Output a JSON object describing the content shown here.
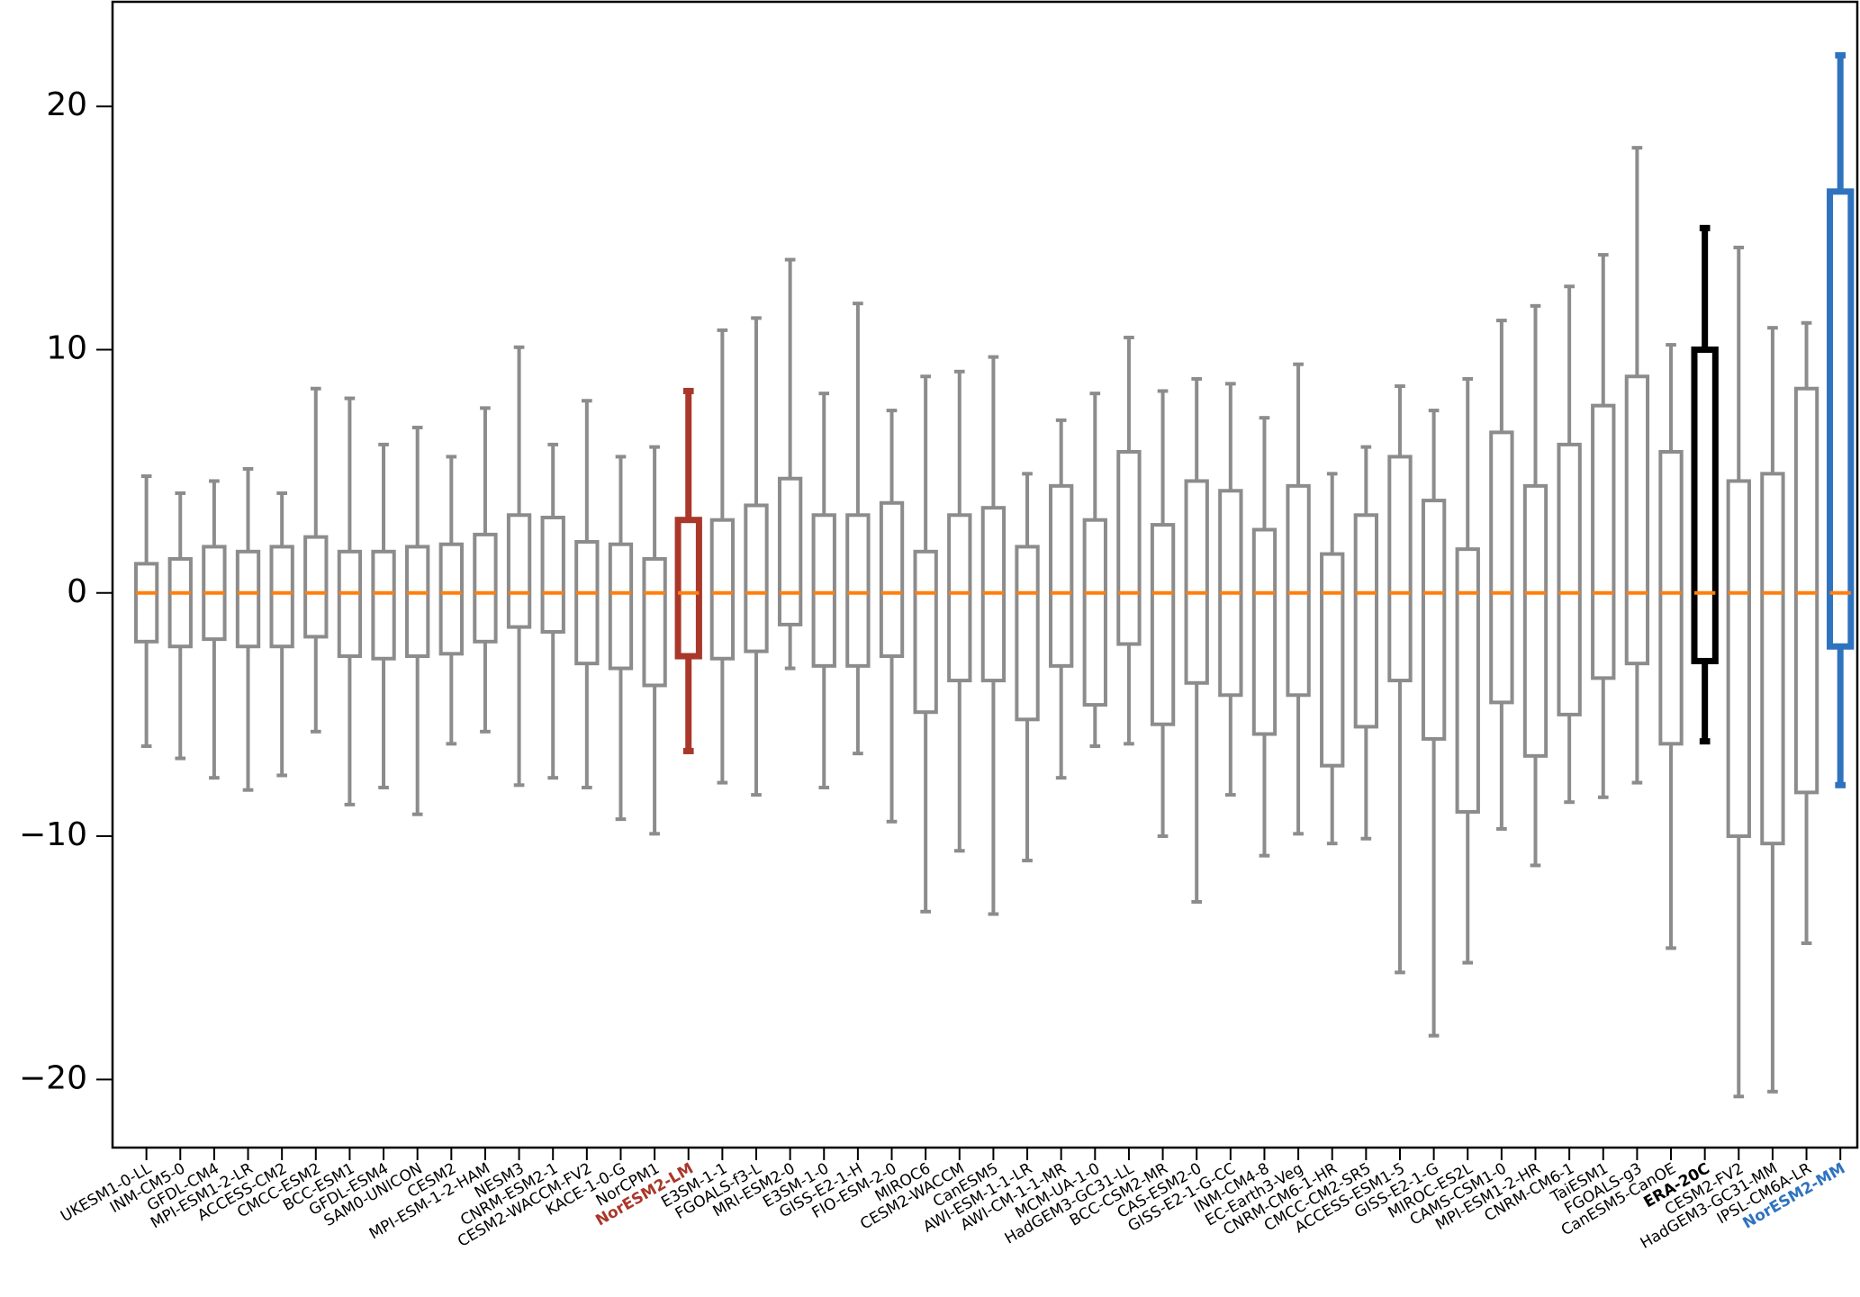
{
  "chart_data": {
    "type": "box",
    "categories": [
      "UKESM1-0-LL",
      "INM-CM5-0",
      "GFDL-CM4",
      "MPI-ESM1-2-LR",
      "ACCESS-CM2",
      "CMCC-ESM2",
      "BCC-ESM1",
      "GFDL-ESM4",
      "SAM0-UNICON",
      "CESM2",
      "MPI-ESM-1-2-HAM",
      "NESM3",
      "CNRM-ESM2-1",
      "CESM2-WACCM-FV2",
      "KACE-1-0-G",
      "NorCPM1",
      "NorESM2-LM",
      "E3SM-1-1",
      "FGOALS-f3-L",
      "MRI-ESM2-0",
      "E3SM-1-0",
      "GISS-E2-1-H",
      "FIO-ESM-2-0",
      "MIROC6",
      "CESM2-WACCM",
      "CanESM5",
      "AWI-ESM-1-1-LR",
      "AWI-CM-1-1-MR",
      "MCM-UA-1-0",
      "HadGEM3-GC31-LL",
      "BCC-CSM2-MR",
      "CAS-ESM2-0",
      "GISS-E2-1-G-CC",
      "INM-CM4-8",
      "EC-Earth3-Veg",
      "CNRM-CM6-1-HR",
      "CMCC-CM2-SR5",
      "ACCESS-ESM1-5",
      "GISS-E2-1-G",
      "MIROC-ES2L",
      "CAMS-CSM1-0",
      "MPI-ESM1-2-HR",
      "CNRM-CM6-1",
      "TaiESM1",
      "FGOALS-g3",
      "CanESM5-CanOE",
      "ERA-20C",
      "CESM2-FV2",
      "HadGEM3-GC31-MM",
      "IPSL-CM6A-LR",
      "NorESM2-MM"
    ],
    "whislo": [
      -6.3,
      -6.8,
      -7.6,
      -8.1,
      -7.5,
      -5.7,
      -8.7,
      -8.0,
      -9.1,
      -6.2,
      -5.7,
      -7.9,
      -7.6,
      -8.0,
      -9.3,
      -9.9,
      -6.5,
      -7.8,
      -8.3,
      -3.1,
      -8.0,
      -6.6,
      -9.4,
      -13.1,
      -10.6,
      -13.2,
      -11.0,
      -7.6,
      -6.3,
      -6.2,
      -10.0,
      -12.7,
      -8.3,
      -10.8,
      -9.9,
      -10.3,
      -10.1,
      -15.6,
      -18.2,
      -15.2,
      -9.7,
      -11.2,
      -8.6,
      -8.4,
      -7.8,
      -14.6,
      -6.1,
      -20.7,
      -20.5,
      -14.4,
      -7.9
    ],
    "q1": [
      -2.0,
      -2.2,
      -1.9,
      -2.2,
      -2.2,
      -1.8,
      -2.6,
      -2.7,
      -2.6,
      -2.5,
      -2.0,
      -1.4,
      -1.6,
      -2.9,
      -3.1,
      -3.8,
      -2.6,
      -2.7,
      -2.4,
      -1.3,
      -3.0,
      -3.0,
      -2.6,
      -4.9,
      -3.6,
      -3.6,
      -5.2,
      -3.0,
      -4.6,
      -2.1,
      -5.4,
      -3.7,
      -4.2,
      -5.8,
      -4.2,
      -7.1,
      -5.5,
      -3.6,
      -6.0,
      -9.0,
      -4.5,
      -6.7,
      -5.0,
      -3.5,
      -2.9,
      -6.2,
      -2.8,
      -10.0,
      -10.3,
      -8.2,
      -2.2
    ],
    "med": [
      0,
      0,
      0,
      0,
      0,
      0,
      0,
      0,
      0,
      0,
      0,
      0,
      0,
      0,
      0,
      0,
      0,
      0,
      0,
      0,
      0,
      0,
      0,
      0,
      0,
      0,
      0,
      0,
      0,
      0,
      0,
      0,
      0,
      0,
      0,
      0,
      0,
      0,
      0,
      0,
      0,
      0,
      0,
      0,
      0,
      0,
      0,
      0,
      0,
      0,
      0
    ],
    "q3": [
      1.2,
      1.4,
      1.9,
      1.7,
      1.9,
      2.3,
      1.7,
      1.7,
      1.9,
      2.0,
      2.4,
      3.2,
      3.1,
      2.1,
      2.0,
      1.4,
      3.0,
      3.0,
      3.6,
      4.7,
      3.2,
      3.2,
      3.7,
      1.7,
      3.2,
      3.5,
      1.9,
      4.4,
      3.0,
      5.8,
      2.8,
      4.6,
      4.2,
      2.6,
      4.4,
      1.6,
      3.2,
      5.6,
      3.8,
      1.8,
      6.6,
      4.4,
      6.1,
      7.7,
      8.9,
      5.8,
      10.0,
      4.6,
      4.9,
      8.4,
      16.5
    ],
    "whishi": [
      4.8,
      4.1,
      4.6,
      5.1,
      4.1,
      8.4,
      8.0,
      6.1,
      6.8,
      5.6,
      7.6,
      10.1,
      6.1,
      7.9,
      5.6,
      6.0,
      8.3,
      10.8,
      11.3,
      13.7,
      8.2,
      11.9,
      7.5,
      8.9,
      9.1,
      9.7,
      4.9,
      7.1,
      8.2,
      10.5,
      8.3,
      8.8,
      8.6,
      7.2,
      9.4,
      4.9,
      6.0,
      8.5,
      7.5,
      8.8,
      11.2,
      11.8,
      12.6,
      13.9,
      18.3,
      10.2,
      15.0,
      14.2,
      10.9,
      11.1,
      22.1
    ],
    "box_colors": [
      "#8c8c8c",
      "#8c8c8c",
      "#8c8c8c",
      "#8c8c8c",
      "#8c8c8c",
      "#8c8c8c",
      "#8c8c8c",
      "#8c8c8c",
      "#8c8c8c",
      "#8c8c8c",
      "#8c8c8c",
      "#8c8c8c",
      "#8c8c8c",
      "#8c8c8c",
      "#8c8c8c",
      "#8c8c8c",
      "#a9372a",
      "#8c8c8c",
      "#8c8c8c",
      "#8c8c8c",
      "#8c8c8c",
      "#8c8c8c",
      "#8c8c8c",
      "#8c8c8c",
      "#8c8c8c",
      "#8c8c8c",
      "#8c8c8c",
      "#8c8c8c",
      "#8c8c8c",
      "#8c8c8c",
      "#8c8c8c",
      "#8c8c8c",
      "#8c8c8c",
      "#8c8c8c",
      "#8c8c8c",
      "#8c8c8c",
      "#8c8c8c",
      "#8c8c8c",
      "#8c8c8c",
      "#8c8c8c",
      "#8c8c8c",
      "#8c8c8c",
      "#8c8c8c",
      "#8c8c8c",
      "#8c8c8c",
      "#8c8c8c",
      "#000000",
      "#8c8c8c",
      "#8c8c8c",
      "#8c8c8c",
      "#2f73bf"
    ],
    "median_color": "#ff7f0e",
    "ylim": [
      -22.8,
      24.3
    ],
    "yticks": [
      {
        "value": -20,
        "label": "−20"
      },
      {
        "value": -10,
        "label": "−10"
      },
      0,
      10,
      20
    ]
  }
}
